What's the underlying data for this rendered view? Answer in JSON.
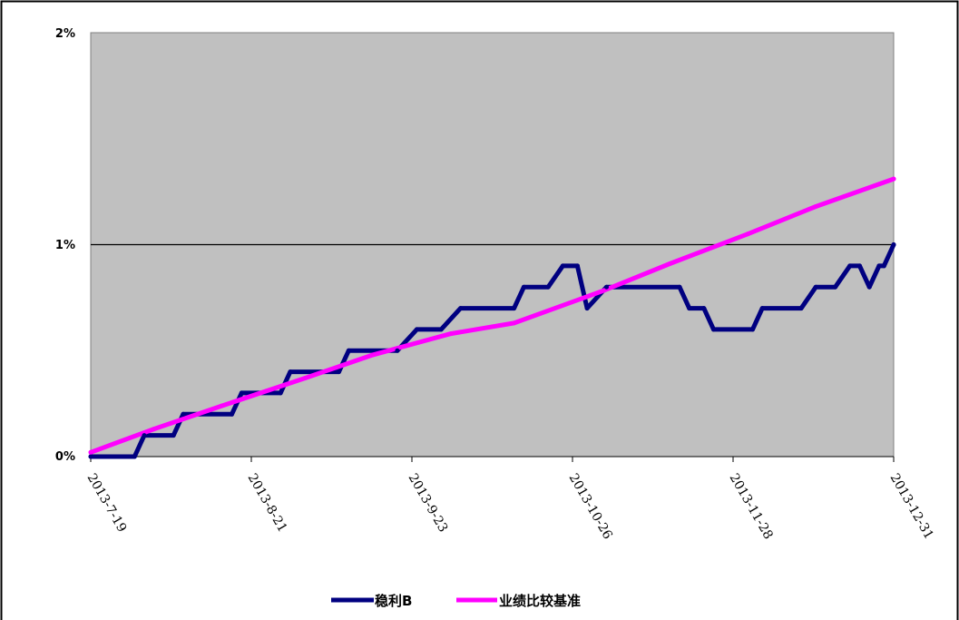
{
  "chart_data": {
    "type": "line",
    "title": "",
    "xlabel": "",
    "ylabel": "",
    "x_ticks": [
      "2013-7-19",
      "2013-8-21",
      "2013-9-23",
      "2013-10-26",
      "2013-11-28",
      "2013-12-31"
    ],
    "x_range": [
      "2013-07-19",
      "2013-12-31"
    ],
    "y_ticks": [
      "0%",
      "1%",
      "2%"
    ],
    "ylim": [
      0,
      2
    ],
    "y_unit": "%",
    "grid": "horizontal line at 1% only",
    "plot_background": "#c0c0c0",
    "legend_placement": "bottom-center",
    "series": [
      {
        "name": "稳利B",
        "color": "#000080",
        "points": [
          [
            "2013-07-19",
            0.0
          ],
          [
            "2013-07-26",
            0.0
          ],
          [
            "2013-07-28",
            0.0
          ],
          [
            "2013-07-30",
            0.1
          ],
          [
            "2013-08-05",
            0.1
          ],
          [
            "2013-08-07",
            0.2
          ],
          [
            "2013-08-17",
            0.2
          ],
          [
            "2013-08-19",
            0.3
          ],
          [
            "2013-08-27",
            0.3
          ],
          [
            "2013-08-29",
            0.4
          ],
          [
            "2013-09-08",
            0.4
          ],
          [
            "2013-09-10",
            0.5
          ],
          [
            "2013-09-20",
            0.5
          ],
          [
            "2013-09-24",
            0.6
          ],
          [
            "2013-09-29",
            0.6
          ],
          [
            "2013-10-03",
            0.7
          ],
          [
            "2013-10-14",
            0.7
          ],
          [
            "2013-10-16",
            0.8
          ],
          [
            "2013-10-21",
            0.8
          ],
          [
            "2013-10-24",
            0.9
          ],
          [
            "2013-10-27",
            0.9
          ],
          [
            "2013-10-29",
            0.7
          ],
          [
            "2013-11-02",
            0.8
          ],
          [
            "2013-11-17",
            0.8
          ],
          [
            "2013-11-19",
            0.7
          ],
          [
            "2013-11-22",
            0.7
          ],
          [
            "2013-11-24",
            0.6
          ],
          [
            "2013-12-02",
            0.6
          ],
          [
            "2013-12-04",
            0.7
          ],
          [
            "2013-12-12",
            0.7
          ],
          [
            "2013-12-15",
            0.8
          ],
          [
            "2013-12-19",
            0.8
          ],
          [
            "2013-12-22",
            0.9
          ],
          [
            "2013-12-24",
            0.9
          ],
          [
            "2013-12-26",
            0.8
          ],
          [
            "2013-12-28",
            0.9
          ],
          [
            "2013-12-29",
            0.9
          ],
          [
            "2013-12-31",
            1.0
          ]
        ]
      },
      {
        "name": "业绩比较基准",
        "color": "#ff00ff",
        "points": [
          [
            "2013-07-19",
            0.02
          ],
          [
            "2013-08-01",
            0.13
          ],
          [
            "2013-08-15",
            0.24
          ],
          [
            "2013-09-01",
            0.37
          ],
          [
            "2013-09-15",
            0.48
          ],
          [
            "2013-10-01",
            0.58
          ],
          [
            "2013-10-14",
            0.63
          ],
          [
            "2013-11-01",
            0.78
          ],
          [
            "2013-11-15",
            0.91
          ],
          [
            "2013-12-01",
            1.05
          ],
          [
            "2013-12-15",
            1.18
          ],
          [
            "2013-12-31",
            1.31
          ]
        ]
      }
    ]
  }
}
